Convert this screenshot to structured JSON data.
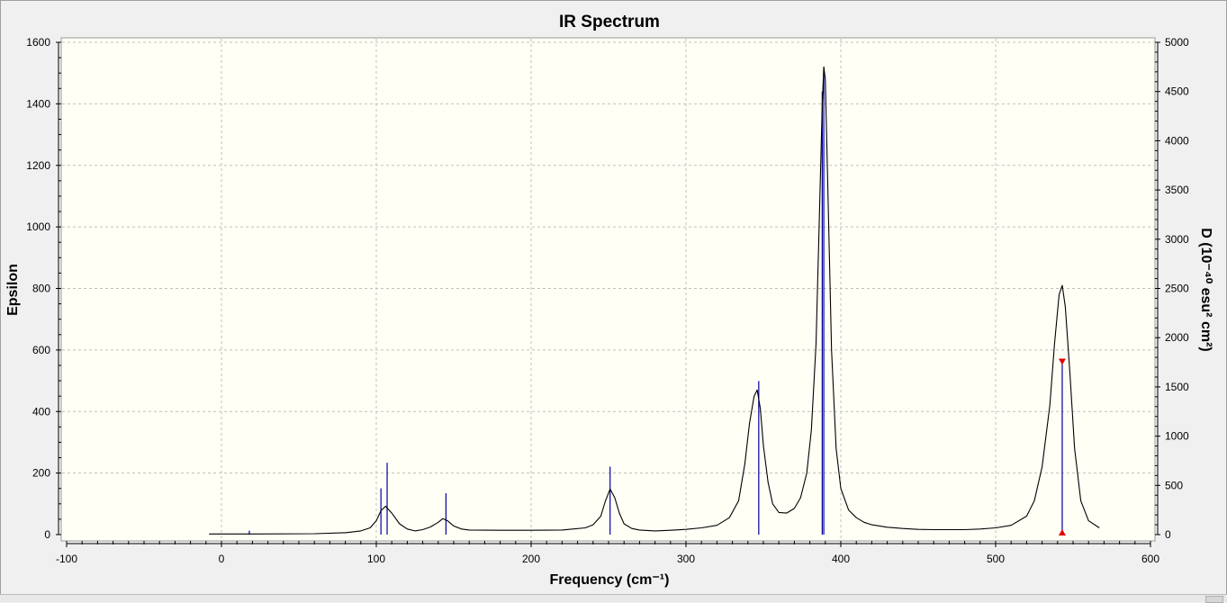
{
  "chart_data": {
    "type": "line",
    "title": "IR Spectrum",
    "xlabel": "Frequency (cm⁻¹)",
    "ylabel": "Epsilon",
    "y2label": "D (10⁻⁴⁰ esu² cm²)",
    "xlim": [
      -100,
      600
    ],
    "ylim": [
      0,
      1600
    ],
    "y2lim": [
      0,
      5000
    ],
    "xticks": [
      -100,
      0,
      100,
      200,
      300,
      400,
      500,
      600
    ],
    "yticks": [
      0,
      200,
      400,
      600,
      800,
      1000,
      1200,
      1400,
      1600
    ],
    "y2ticks": [
      0,
      500,
      1000,
      1500,
      2000,
      2500,
      3000,
      3500,
      4000,
      4500,
      5000
    ],
    "grid": true,
    "spectrum": {
      "x": [
        -8,
        20,
        60,
        80,
        90,
        96,
        100,
        103,
        106,
        110,
        115,
        120,
        125,
        130,
        135,
        140,
        143,
        146,
        150,
        155,
        160,
        180,
        200,
        220,
        235,
        240,
        245,
        248,
        251,
        254,
        257,
        260,
        265,
        270,
        280,
        290,
        300,
        310,
        320,
        328,
        334,
        338,
        341,
        344,
        346,
        348,
        350,
        353,
        356,
        360,
        365,
        370,
        374,
        378,
        381,
        384,
        386,
        388,
        389,
        390,
        392,
        394,
        397,
        400,
        405,
        410,
        415,
        420,
        430,
        440,
        450,
        460,
        470,
        480,
        490,
        500,
        510,
        520,
        525,
        530,
        535,
        538,
        541,
        543,
        545,
        548,
        551,
        555,
        560,
        567
      ],
      "y": [
        2,
        2,
        3,
        6,
        12,
        22,
        45,
        78,
        92,
        70,
        35,
        18,
        12,
        16,
        25,
        40,
        52,
        45,
        28,
        18,
        15,
        14,
        14,
        15,
        22,
        32,
        60,
        110,
        148,
        120,
        70,
        35,
        20,
        15,
        12,
        14,
        17,
        22,
        30,
        55,
        110,
        230,
        360,
        450,
        470,
        410,
        290,
        170,
        100,
        72,
        70,
        85,
        120,
        200,
        340,
        620,
        1000,
        1400,
        1520,
        1480,
        1050,
        600,
        280,
        150,
        80,
        55,
        40,
        32,
        24,
        20,
        17,
        16,
        16,
        16,
        18,
        22,
        30,
        60,
        110,
        220,
        420,
        620,
        780,
        810,
        740,
        520,
        280,
        110,
        45,
        22
      ]
    },
    "stick_series": {
      "x": [
        18,
        103,
        107,
        145,
        251,
        347,
        388,
        389,
        543
      ],
      "y2": [
        40,
        470,
        730,
        420,
        690,
        1560,
        4500,
        4750,
        1760
      ]
    },
    "marker": {
      "x": 543,
      "y2": 1760
    },
    "colors": {
      "spectrum": "#000000",
      "sticks": "#0000a0",
      "marker": "#e00000",
      "plot_bg": "#fffff6",
      "grid": "#c0c0c0"
    }
  }
}
